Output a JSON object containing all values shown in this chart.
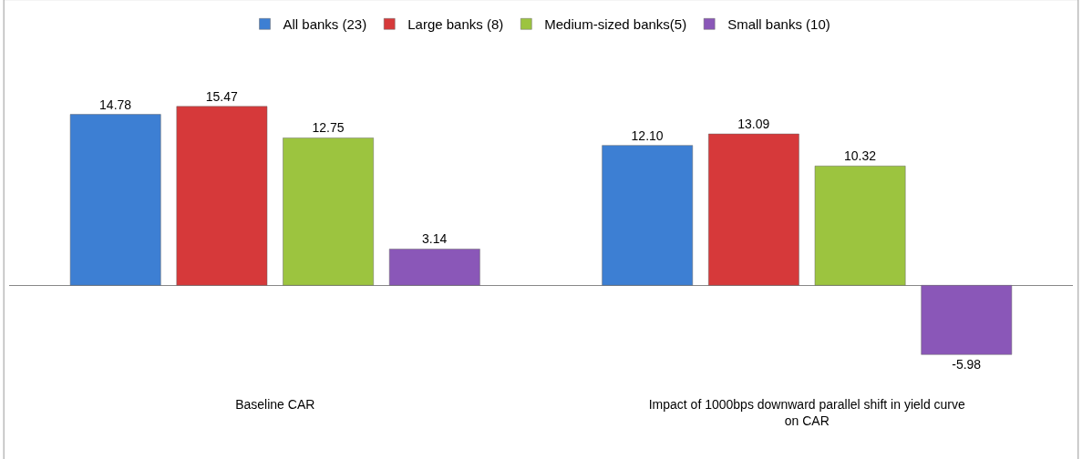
{
  "chart_data": {
    "type": "bar",
    "categories": [
      "Baseline CAR",
      "Impact of 1000bps downward parallel shift in yield curve on CAR"
    ],
    "series": [
      {
        "name": "All banks (23)",
        "color": "#3d7fd3",
        "values": [
          14.78,
          12.1
        ],
        "value_labels": [
          "14.78",
          "12.10"
        ]
      },
      {
        "name": "Large banks (8)",
        "color": "#d6393a",
        "values": [
          15.47,
          13.09
        ],
        "value_labels": [
          "15.47",
          "13.09"
        ]
      },
      {
        "name": "Medium-sized banks(5)",
        "color": "#9cc43f",
        "values": [
          12.75,
          10.32
        ],
        "value_labels": [
          "12.75",
          "10.32"
        ]
      },
      {
        "name": "Small banks (10)",
        "color": "#8a57b8",
        "values": [
          3.14,
          -5.98
        ],
        "value_labels": [
          "3.14",
          "-5.98"
        ]
      }
    ],
    "legend": "top",
    "tick_labels": "x"
  }
}
